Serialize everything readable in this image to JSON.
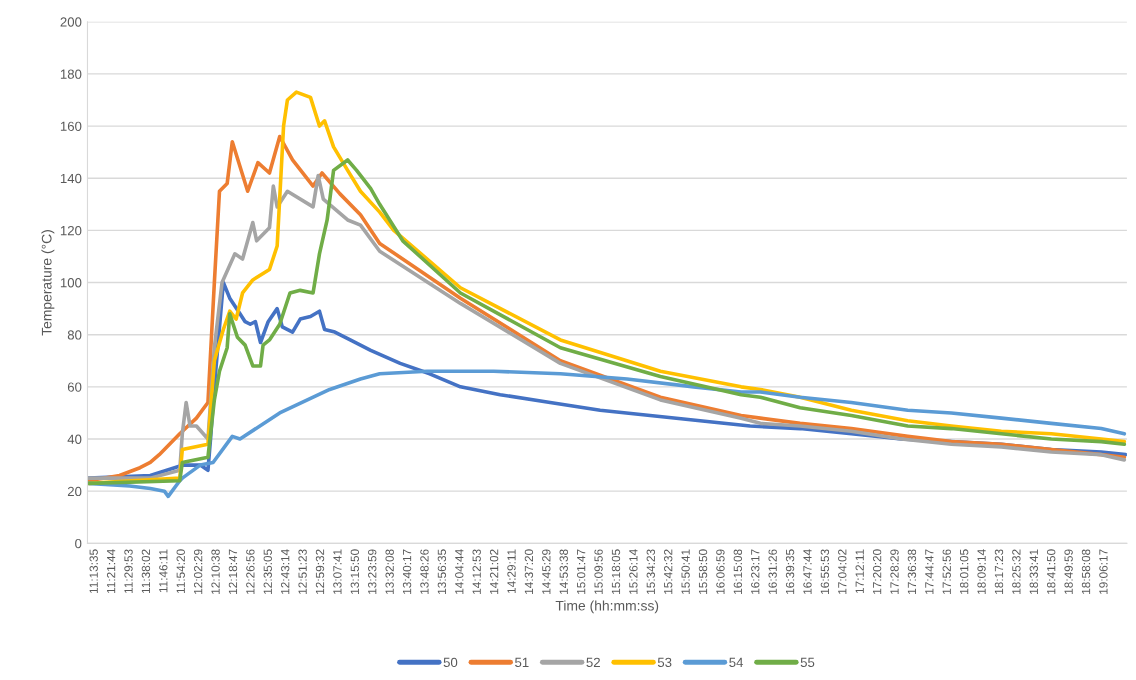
{
  "chart_data": {
    "type": "line",
    "xlabel": "Time (hh:mm:ss)",
    "ylabel": "Temperature (°C)",
    "xlim": [
      11.17,
      19.28
    ],
    "ylim": [
      0,
      200
    ],
    "yticks": [
      0,
      20,
      40,
      60,
      80,
      100,
      120,
      140,
      160,
      180,
      200
    ],
    "xticks": [
      {
        "value": 11.2264,
        "label": "11:13:35"
      },
      {
        "value": 11.3622,
        "label": "11:21:44"
      },
      {
        "value": 11.4981,
        "label": "11:29:53"
      },
      {
        "value": 11.6339,
        "label": "11:38:02"
      },
      {
        "value": 11.7697,
        "label": "11:46:11"
      },
      {
        "value": 11.9056,
        "label": "11:54:20"
      },
      {
        "value": 12.0414,
        "label": "12:02:29"
      },
      {
        "value": 12.1772,
        "label": "12:10:38"
      },
      {
        "value": 12.3131,
        "label": "12:18:47"
      },
      {
        "value": 12.4489,
        "label": "12:26:56"
      },
      {
        "value": 12.5847,
        "label": "12:35:05"
      },
      {
        "value": 12.7206,
        "label": "12:43:14"
      },
      {
        "value": 12.8564,
        "label": "12:51:23"
      },
      {
        "value": 12.9922,
        "label": "12:59:32"
      },
      {
        "value": 13.1281,
        "label": "13:07:41"
      },
      {
        "value": 13.2639,
        "label": "13:15:50"
      },
      {
        "value": 13.3997,
        "label": "13:23:59"
      },
      {
        "value": 13.5356,
        "label": "13:32:08"
      },
      {
        "value": 13.6714,
        "label": "13:40:17"
      },
      {
        "value": 13.8072,
        "label": "13:48:26"
      },
      {
        "value": 13.9431,
        "label": "13:56:35"
      },
      {
        "value": 14.0789,
        "label": "14:04:44"
      },
      {
        "value": 14.2147,
        "label": "14:12:53"
      },
      {
        "value": 14.3506,
        "label": "14:21:02"
      },
      {
        "value": 14.4864,
        "label": "14:29:11"
      },
      {
        "value": 14.6222,
        "label": "14:37:20"
      },
      {
        "value": 14.7581,
        "label": "14:45:29"
      },
      {
        "value": 14.8939,
        "label": "14:53:38"
      },
      {
        "value": 15.0297,
        "label": "15:01:47"
      },
      {
        "value": 15.1656,
        "label": "15:09:56"
      },
      {
        "value": 15.3014,
        "label": "15:18:05"
      },
      {
        "value": 15.4372,
        "label": "15:26:14"
      },
      {
        "value": 15.5731,
        "label": "15:34:23"
      },
      {
        "value": 15.7089,
        "label": "15:42:32"
      },
      {
        "value": 15.8447,
        "label": "15:50:41"
      },
      {
        "value": 15.9806,
        "label": "15:58:50"
      },
      {
        "value": 16.1164,
        "label": "16:06:59"
      },
      {
        "value": 16.2522,
        "label": "16:15:08"
      },
      {
        "value": 16.3881,
        "label": "16:23:17"
      },
      {
        "value": 16.5239,
        "label": "16:31:26"
      },
      {
        "value": 16.6597,
        "label": "16:39:35"
      },
      {
        "value": 16.7956,
        "label": "16:47:44"
      },
      {
        "value": 16.9314,
        "label": "16:55:53"
      },
      {
        "value": 17.0672,
        "label": "17:04:02"
      },
      {
        "value": 17.2031,
        "label": "17:12:11"
      },
      {
        "value": 17.3389,
        "label": "17:20:20"
      },
      {
        "value": 17.4747,
        "label": "17:28:29"
      },
      {
        "value": 17.6106,
        "label": "17:36:38"
      },
      {
        "value": 17.7464,
        "label": "17:44:47"
      },
      {
        "value": 17.8822,
        "label": "17:52:56"
      },
      {
        "value": 18.0181,
        "label": "18:01:05"
      },
      {
        "value": 18.1539,
        "label": "18:09:14"
      },
      {
        "value": 18.2897,
        "label": "18:17:23"
      },
      {
        "value": 18.4256,
        "label": "18:25:32"
      },
      {
        "value": 18.5614,
        "label": "18:33:41"
      },
      {
        "value": 18.6972,
        "label": "18:41:50"
      },
      {
        "value": 18.8331,
        "label": "18:49:59"
      },
      {
        "value": 18.9689,
        "label": "18:58:08"
      },
      {
        "value": 19.1047,
        "label": "19:06:17"
      }
    ],
    "grid": "y",
    "legend": "bottom",
    "marker": "none",
    "line_style": "solid",
    "series": [
      {
        "name": "50",
        "color": "#4472c4",
        "x": [
          11.18,
          11.66,
          11.85,
          11.91,
          12.05,
          12.11,
          12.13,
          12.16,
          12.23,
          12.28,
          12.36,
          12.4,
          12.44,
          12.48,
          12.52,
          12.58,
          12.65,
          12.69,
          12.77,
          12.83,
          12.91,
          12.98,
          13.02,
          13.1,
          13.22,
          13.38,
          13.61,
          13.84,
          14.08,
          14.39,
          14.78,
          15.17,
          15.56,
          15.95,
          16.34,
          16.73,
          17.13,
          17.52,
          17.91,
          18.3,
          18.69,
          19.08,
          19.27
        ],
        "values": [
          25,
          26,
          29,
          30,
          30,
          28,
          40,
          60,
          100,
          94,
          88,
          85,
          84,
          85,
          77,
          85,
          90,
          83,
          81,
          86,
          87,
          89,
          82,
          81,
          78,
          74,
          69,
          65,
          60,
          57,
          54,
          51,
          49,
          47,
          45,
          44,
          42,
          40,
          39,
          38,
          36,
          35,
          34
        ]
      },
      {
        "name": "51",
        "color": "#ed7d31",
        "x": [
          11.18,
          11.42,
          11.58,
          11.66,
          11.73,
          11.89,
          12.02,
          12.11,
          12.16,
          12.2,
          12.26,
          12.3,
          12.42,
          12.5,
          12.59,
          12.67,
          12.77,
          12.93,
          13.0,
          13.14,
          13.3,
          13.45,
          14.08,
          14.86,
          15.64,
          16.27,
          16.42,
          16.73,
          17.13,
          17.57,
          17.91,
          18.3,
          18.69,
          19.08,
          19.26
        ],
        "values": [
          24,
          26,
          29,
          31,
          34,
          42,
          48,
          54,
          100,
          135,
          138,
          154,
          135,
          146,
          142,
          156,
          147,
          137,
          142,
          134,
          126,
          115,
          94,
          70,
          56,
          49,
          48,
          46,
          44,
          41,
          39,
          38,
          36,
          34,
          33
        ]
      },
      {
        "name": "52",
        "color": "#a5a5a5",
        "x": [
          11.18,
          11.66,
          11.89,
          11.91,
          11.94,
          11.97,
          12.02,
          12.11,
          12.16,
          12.22,
          12.32,
          12.38,
          12.46,
          12.49,
          12.59,
          12.62,
          12.65,
          12.73,
          12.93,
          12.97,
          13.01,
          13.2,
          13.3,
          13.45,
          14.08,
          14.86,
          15.64,
          16.27,
          16.42,
          16.73,
          17.13,
          17.52,
          17.91,
          18.3,
          18.69,
          19.08,
          19.26
        ],
        "values": [
          25,
          25,
          28,
          42,
          54,
          45,
          45,
          40,
          75,
          100,
          111,
          109,
          123,
          116,
          121,
          137,
          129,
          135,
          129,
          141,
          132,
          124,
          122,
          112,
          92,
          69,
          55,
          48,
          46,
          45,
          43,
          40,
          38,
          37,
          35,
          34,
          32
        ]
      },
      {
        "name": "53",
        "color": "#ffc000",
        "x": [
          11.18,
          11.89,
          11.91,
          12.11,
          12.16,
          12.23,
          12.28,
          12.33,
          12.38,
          12.46,
          12.59,
          12.65,
          12.7,
          12.73,
          12.8,
          12.91,
          12.98,
          13.02,
          13.09,
          13.2,
          13.3,
          13.45,
          13.56,
          14.08,
          14.86,
          15.64,
          16.27,
          16.42,
          16.73,
          17.13,
          17.57,
          17.91,
          18.3,
          18.69,
          19.08,
          19.26
        ],
        "values": [
          23,
          25,
          36,
          38,
          70,
          82,
          89,
          86,
          96,
          101,
          105,
          114,
          160,
          170,
          173,
          171,
          160,
          162,
          152,
          143,
          135,
          127,
          120,
          98,
          78,
          66,
          60,
          59,
          56,
          51,
          47,
          45,
          43,
          42,
          40,
          39
        ]
      },
      {
        "name": "54",
        "color": "#5b9bd5",
        "x": [
          11.18,
          11.5,
          11.66,
          11.77,
          11.8,
          11.89,
          11.91,
          12.05,
          12.15,
          12.3,
          12.36,
          12.67,
          13.06,
          13.3,
          13.45,
          13.82,
          14.34,
          14.86,
          15.38,
          15.9,
          16.27,
          16.42,
          16.73,
          17.13,
          17.57,
          17.91,
          18.3,
          18.69,
          19.08,
          19.26
        ],
        "values": [
          23,
          22,
          21,
          20,
          18,
          24,
          25,
          30,
          31,
          41,
          40,
          50,
          59,
          63,
          65,
          66,
          66,
          65,
          63,
          60,
          58,
          58,
          56,
          54,
          51,
          50,
          48,
          46,
          44,
          42
        ]
      },
      {
        "name": "55",
        "color": "#70ad47",
        "x": [
          11.18,
          11.89,
          11.91,
          12.11,
          12.16,
          12.2,
          12.26,
          12.28,
          12.34,
          12.4,
          12.46,
          12.52,
          12.54,
          12.59,
          12.67,
          12.75,
          12.83,
          12.93,
          12.98,
          13.04,
          13.09,
          13.2,
          13.27,
          13.38,
          13.45,
          13.63,
          14.08,
          14.86,
          15.64,
          16.27,
          16.42,
          16.73,
          17.13,
          17.57,
          17.91,
          18.3,
          18.69,
          19.08,
          19.26
        ],
        "values": [
          23,
          24,
          31,
          33,
          55,
          66,
          75,
          88,
          79,
          76,
          68,
          68,
          76,
          78,
          84,
          96,
          97,
          96,
          111,
          124,
          143,
          147,
          143,
          136,
          130,
          116,
          96,
          75,
          64,
          57,
          56,
          52,
          49,
          45,
          44,
          42,
          40,
          39,
          38
        ]
      }
    ]
  }
}
